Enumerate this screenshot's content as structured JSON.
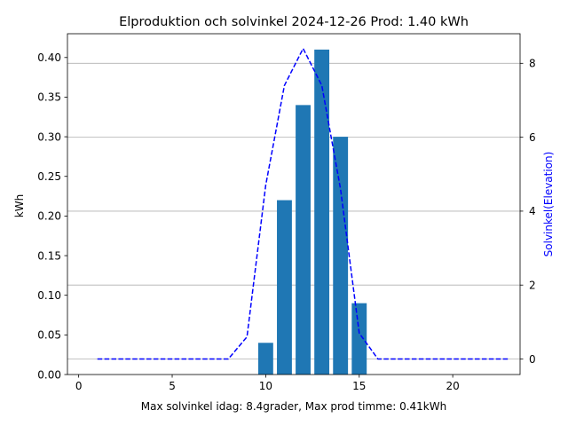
{
  "chart_data": {
    "type": "bar",
    "title": "Elproduktion och solvinkel 2024-12-26 Prod: 1.40 kWh",
    "xlabel": "Max solvinkel idag: 8.4grader, Max prod timme: 0.41kWh",
    "ylabel": "kWh",
    "y2label": "Solvinkel(Elevation)",
    "xlim": [
      -0.6,
      23.6
    ],
    "ylim": [
      0,
      0.43
    ],
    "y2lim": [
      -0.42,
      8.8
    ],
    "xticks": [
      0,
      5,
      10,
      15,
      20
    ],
    "yticks": [
      "0.00",
      "0.05",
      "0.10",
      "0.15",
      "0.20",
      "0.25",
      "0.30",
      "0.35",
      "0.40"
    ],
    "y2ticks": [
      0,
      2,
      4,
      6,
      8
    ],
    "grid": "horizontal-secondary-axis",
    "bar_color": "#1f77b4",
    "line_color": "#0000ff",
    "production": {
      "x": [
        10,
        11,
        12,
        13,
        14,
        15
      ],
      "values": [
        0.04,
        0.22,
        0.34,
        0.41,
        0.3,
        0.09
      ]
    },
    "elevation": {
      "x": [
        1,
        2,
        3,
        4,
        5,
        6,
        7,
        8,
        9,
        10,
        11,
        12,
        13,
        14,
        15,
        16,
        17,
        18,
        19,
        20,
        21,
        22,
        23
      ],
      "values": [
        0,
        0,
        0,
        0,
        0,
        0,
        0,
        0,
        0.6,
        4.7,
        7.4,
        8.4,
        7.4,
        4.6,
        0.7,
        0,
        0,
        0,
        0,
        0,
        0,
        0,
        0
      ]
    }
  }
}
